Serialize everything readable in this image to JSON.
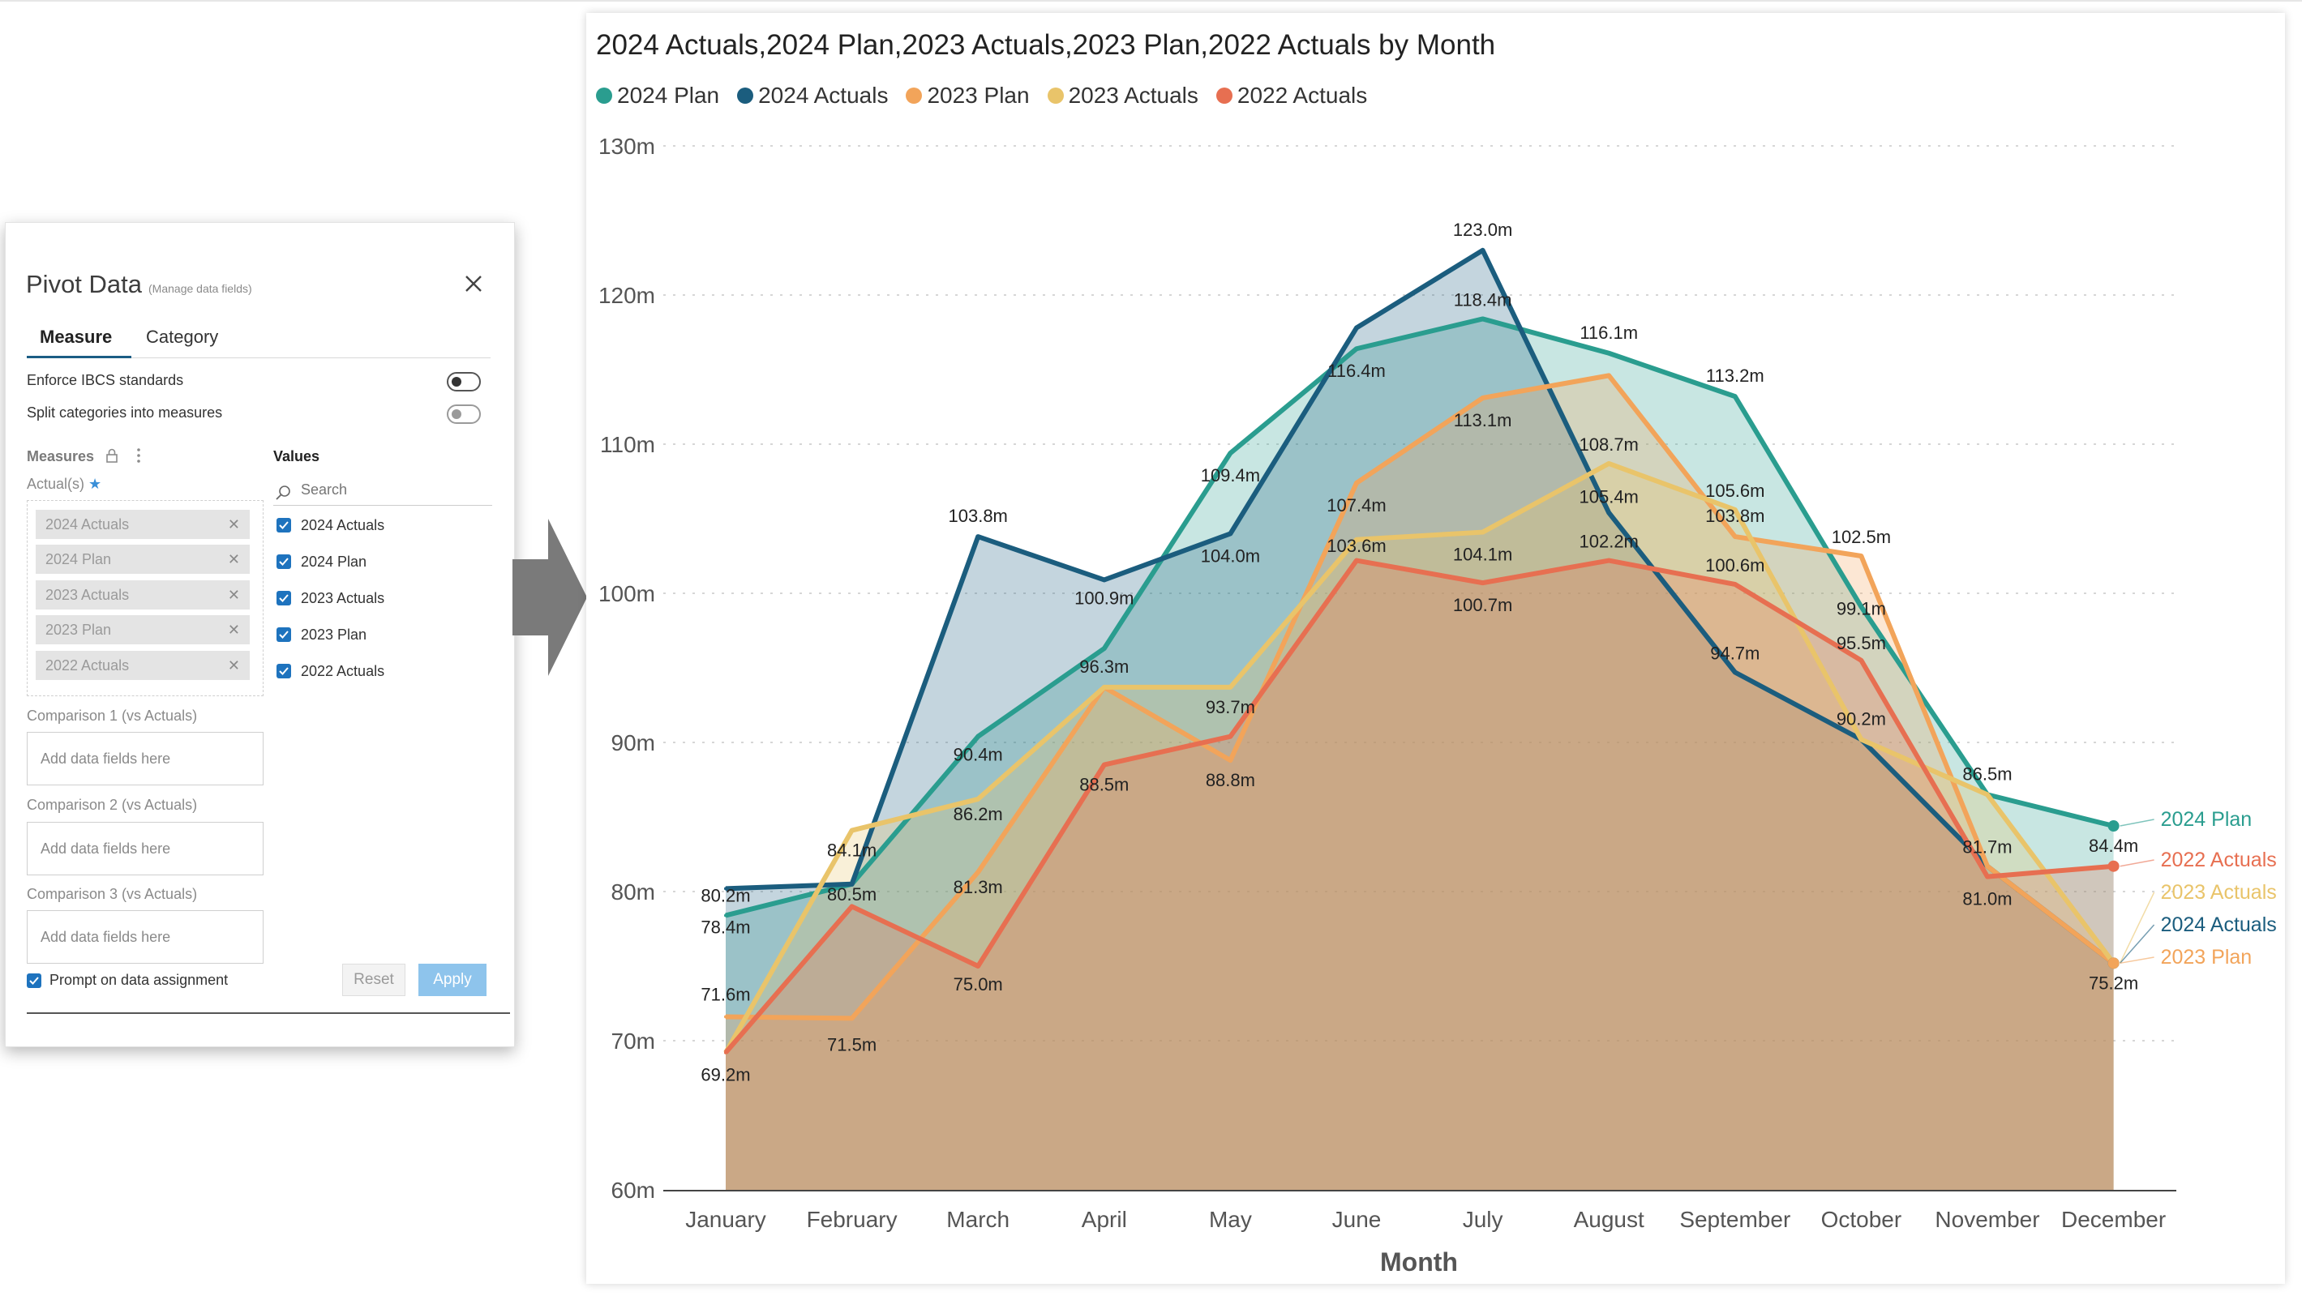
{
  "panel": {
    "title": "Pivot Data",
    "subtitle": "(Manage data fields)",
    "tabs": [
      {
        "label": "Measure"
      },
      {
        "label": "Category"
      }
    ],
    "enforce_label": "Enforce IBCS standards",
    "split_label": "Split categories into measures",
    "measures_label": "Measures",
    "actuals_label": "Actual(s)",
    "chips": [
      "2024 Actuals",
      "2024 Plan",
      "2023 Actuals",
      "2023 Plan",
      "2022 Actuals"
    ],
    "values_label": "Values",
    "search_placeholder": "Search",
    "values": [
      "2024 Actuals",
      "2024 Plan",
      "2023 Actuals",
      "2023 Plan",
      "2022 Actuals"
    ],
    "comparisons": [
      {
        "label": "Comparison 1 (vs Actuals)",
        "placeholder": "Add data fields here"
      },
      {
        "label": "Comparison 2 (vs Actuals)",
        "placeholder": "Add data fields here"
      },
      {
        "label": "Comparison 3 (vs Actuals)",
        "placeholder": "Add data fields here"
      }
    ],
    "prompt_label": "Prompt on data assignment",
    "reset_label": "Reset",
    "apply_label": "Apply"
  },
  "chart": {
    "title": "2024 Actuals,2024 Plan,2023 Actuals,2023 Plan,2022 Actuals by Month",
    "legend": [
      {
        "name": "2024 Plan",
        "color": "#2a9d8f"
      },
      {
        "name": "2024 Actuals",
        "color": "#1b5d7e"
      },
      {
        "name": "2023 Plan",
        "color": "#f2a45a"
      },
      {
        "name": "2023 Actuals",
        "color": "#e9c46a"
      },
      {
        "name": "2022 Actuals",
        "color": "#e76f51"
      }
    ]
  },
  "chart_data": {
    "type": "area",
    "title": "2024 Actuals,2024 Plan,2023 Actuals,2023 Plan,2022 Actuals by Month",
    "xlabel": "Month",
    "ylabel": "",
    "ylim": [
      60,
      130
    ],
    "yticks": [
      "60m",
      "70m",
      "80m",
      "90m",
      "100m",
      "110m",
      "120m",
      "130m"
    ],
    "grid": true,
    "legend_position": "top-left",
    "categories": [
      "January",
      "February",
      "March",
      "April",
      "May",
      "June",
      "July",
      "August",
      "September",
      "October",
      "November",
      "December"
    ],
    "series": [
      {
        "name": "2024 Plan",
        "color": "#2a9d8f",
        "values": [
          78.4,
          80.5,
          90.4,
          96.3,
          109.4,
          116.4,
          118.4,
          116.1,
          113.2,
          99.1,
          86.5,
          84.4
        ]
      },
      {
        "name": "2024 Actuals",
        "color": "#1b5d7e",
        "values": [
          80.2,
          80.5,
          103.8,
          100.9,
          104.0,
          117.8,
          123.0,
          105.4,
          94.7,
          90.2,
          81.7,
          75.2
        ]
      },
      {
        "name": "2023 Plan",
        "color": "#f2a45a",
        "values": [
          71.6,
          71.5,
          81.3,
          93.7,
          88.8,
          107.4,
          113.1,
          114.6,
          103.8,
          102.5,
          81.7,
          75.2
        ]
      },
      {
        "name": "2023 Actuals",
        "color": "#e9c46a",
        "values": [
          69.2,
          84.1,
          86.2,
          93.7,
          93.7,
          103.6,
          104.1,
          108.7,
          105.6,
          90.2,
          86.5,
          75.2
        ]
      },
      {
        "name": "2022 Actuals",
        "color": "#e76f51",
        "values": [
          69.2,
          79.0,
          75.0,
          88.5,
          90.4,
          102.2,
          100.7,
          102.2,
          100.6,
          95.5,
          81.0,
          81.7
        ]
      }
    ],
    "data_labels": [
      {
        "text": "80.2m",
        "month": 0,
        "value": 80.2,
        "align": "middle",
        "offset": 16
      },
      {
        "text": "78.4m",
        "month": 0,
        "value": 78.4,
        "align": "middle",
        "offset": 22
      },
      {
        "text": "71.6m",
        "month": 0,
        "value": 71.6,
        "align": "middle",
        "offset": -20
      },
      {
        "text": "69.2m",
        "month": 0,
        "value": 69.2,
        "align": "middle",
        "offset": 35
      },
      {
        "text": "84.1m",
        "month": 1,
        "value": 84.1,
        "align": "middle",
        "offset": 32
      },
      {
        "text": "80.5m",
        "month": 1,
        "value": 80.5,
        "align": "middle",
        "offset": 20
      },
      {
        "text": "71.5m",
        "month": 1,
        "value": 71.5,
        "align": "middle",
        "offset": 40
      },
      {
        "text": "103.8m",
        "month": 2,
        "value": 103.8,
        "align": "middle",
        "offset": -18
      },
      {
        "text": "90.4m",
        "month": 2,
        "value": 90.4,
        "align": "middle",
        "offset": 30
      },
      {
        "text": "86.2m",
        "month": 2,
        "value": 86.2,
        "align": "middle",
        "offset": 26
      },
      {
        "text": "81.3m",
        "month": 2,
        "value": 81.3,
        "align": "middle",
        "offset": 26
      },
      {
        "text": "75.0m",
        "month": 2,
        "value": 75.0,
        "align": "middle",
        "offset": 30
      },
      {
        "text": "100.9m",
        "month": 3,
        "value": 100.9,
        "align": "middle",
        "offset": 30
      },
      {
        "text": "96.3m",
        "month": 3,
        "value": 96.3,
        "align": "middle",
        "offset": 30
      },
      {
        "text": "88.5m",
        "month": 3,
        "value": 88.5,
        "align": "middle",
        "offset": 32
      },
      {
        "text": "109.4m",
        "month": 4,
        "value": 109.4,
        "align": "middle",
        "offset": 35
      },
      {
        "text": "104.0m",
        "month": 4,
        "value": 104.0,
        "align": "middle",
        "offset": 35
      },
      {
        "text": "93.7m",
        "month": 4,
        "value": 93.7,
        "align": "middle",
        "offset": 32
      },
      {
        "text": "88.8m",
        "month": 4,
        "value": 88.8,
        "align": "middle",
        "offset": 32
      },
      {
        "text": "116.4m",
        "month": 5,
        "value": 116.4,
        "align": "middle",
        "offset": 35
      },
      {
        "text": "107.4m",
        "month": 5,
        "value": 107.4,
        "align": "middle",
        "offset": 35
      },
      {
        "text": "103.6m",
        "month": 5,
        "value": 103.6,
        "align": "middle",
        "offset": 15
      },
      {
        "text": "123.0m",
        "month": 6,
        "value": 123.0,
        "align": "middle",
        "offset": -18
      },
      {
        "text": "118.4m",
        "month": 6,
        "value": 118.4,
        "align": "middle",
        "offset": -16
      },
      {
        "text": "113.1m",
        "month": 6,
        "value": 113.1,
        "align": "middle",
        "offset": 35
      },
      {
        "text": "104.1m",
        "month": 6,
        "value": 104.1,
        "align": "middle",
        "offset": 35
      },
      {
        "text": "100.7m",
        "month": 6,
        "value": 100.7,
        "align": "middle",
        "offset": 35
      },
      {
        "text": "116.1m",
        "month": 7,
        "value": 116.1,
        "align": "middle",
        "offset": -18
      },
      {
        "text": "108.7m",
        "month": 7,
        "value": 108.7,
        "align": "middle",
        "offset": -16
      },
      {
        "text": "105.4m",
        "month": 7,
        "value": 105.4,
        "align": "middle",
        "offset": -12
      },
      {
        "text": "102.2m",
        "month": 7,
        "value": 102.2,
        "align": "middle",
        "offset": -16
      },
      {
        "text": "113.2m",
        "month": 8,
        "value": 113.2,
        "align": "middle",
        "offset": -18
      },
      {
        "text": "105.6m",
        "month": 8,
        "value": 105.6,
        "align": "middle",
        "offset": -16
      },
      {
        "text": "103.8m",
        "month": 8,
        "value": 103.8,
        "align": "middle",
        "offset": -18
      },
      {
        "text": "100.6m",
        "month": 8,
        "value": 100.6,
        "align": "middle",
        "offset": -16
      },
      {
        "text": "94.7m",
        "month": 8,
        "value": 94.7,
        "align": "middle",
        "offset": -16
      },
      {
        "text": "102.5m",
        "month": 9,
        "value": 102.5,
        "align": "middle",
        "offset": -16
      },
      {
        "text": "99.1m",
        "month": 9,
        "value": 99.1,
        "align": "middle",
        "offset": 10
      },
      {
        "text": "95.5m",
        "month": 9,
        "value": 95.5,
        "align": "middle",
        "offset": -14
      },
      {
        "text": "90.2m",
        "month": 9,
        "value": 90.2,
        "align": "middle",
        "offset": -18
      },
      {
        "text": "86.5m",
        "month": 10,
        "value": 86.5,
        "align": "middle",
        "offset": -18
      },
      {
        "text": "81.7m",
        "month": 10,
        "value": 81.7,
        "align": "middle",
        "offset": -16
      },
      {
        "text": "81.0m",
        "month": 10,
        "value": 81.0,
        "align": "middle",
        "offset": 35
      },
      {
        "text": "84.4m",
        "month": 11,
        "value": 84.4,
        "align": "middle",
        "offset": 32
      },
      {
        "text": "75.2m",
        "month": 11,
        "value": 75.2,
        "align": "middle",
        "offset": 32
      }
    ],
    "end_labels": [
      {
        "name": "2024 Plan",
        "color": "#2a9d8f",
        "value": 84.4
      },
      {
        "name": "2022 Actuals",
        "color": "#e76f51",
        "value": 81.7
      },
      {
        "name": "2023 Actuals",
        "color": "#e9c46a",
        "value": 75.2
      },
      {
        "name": "2024 Actuals",
        "color": "#1b5d7e",
        "value": 75.2
      },
      {
        "name": "2023 Plan",
        "color": "#f2a45a",
        "value": 75.2
      }
    ]
  }
}
